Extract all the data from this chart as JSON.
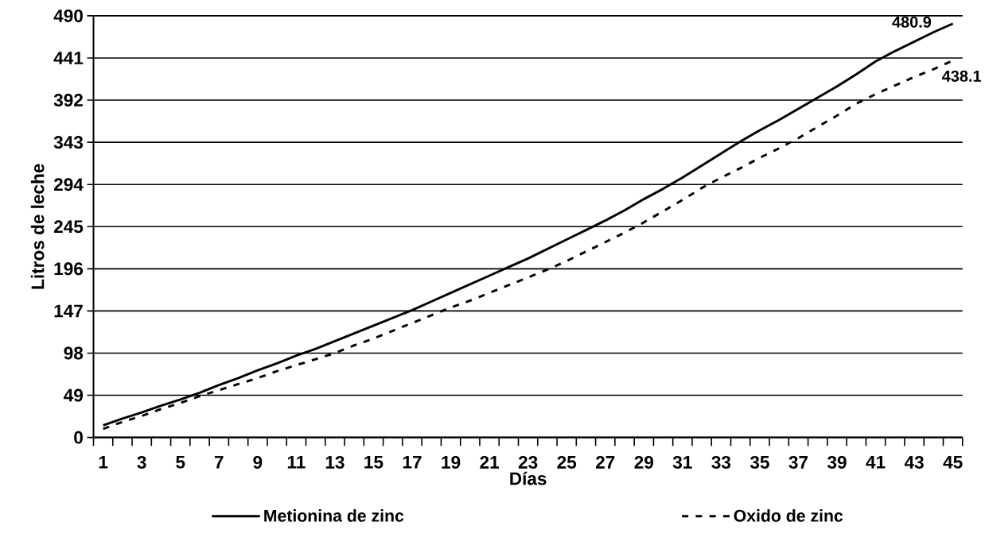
{
  "chart_data": {
    "type": "line",
    "xlabel": "Días",
    "ylabel": "Litros de leche",
    "categories": [
      "1",
      null,
      "3",
      null,
      "5",
      null,
      "7",
      null,
      "9",
      null,
      "11",
      null,
      "13",
      null,
      "15",
      null,
      "17",
      null,
      "19",
      null,
      "21",
      null,
      "23",
      null,
      "25",
      null,
      "27",
      null,
      "29",
      null,
      "31",
      null,
      "33",
      null,
      "35",
      null,
      "37",
      null,
      "39",
      null,
      "41",
      null,
      "43",
      null,
      "45"
    ],
    "series": [
      {
        "name": "Metionina de zinc",
        "color": "#000000",
        "line_style": "solid",
        "values": [
          14,
          22,
          29,
          37,
          44,
          52,
          61,
          69,
          78,
          86,
          95,
          103,
          112,
          121,
          130,
          139,
          148,
          158,
          168,
          178,
          188,
          198,
          208,
          219,
          230,
          241,
          252,
          264,
          277,
          289,
          302,
          316,
          330,
          344,
          357,
          369,
          382,
          395,
          408,
          422,
          437,
          449,
          460,
          471,
          480.9
        ],
        "value_labels": [
          null,
          null,
          null,
          null,
          null,
          null,
          null,
          null,
          null,
          null,
          null,
          null,
          null,
          null,
          null,
          null,
          null,
          null,
          null,
          null,
          null,
          null,
          null,
          null,
          null,
          null,
          null,
          null,
          null,
          null,
          null,
          null,
          null,
          null,
          null,
          null,
          null,
          null,
          null,
          null,
          null,
          null,
          null,
          null,
          "480.9"
        ]
      },
      {
        "name": "Oxido de zinc",
        "color": "#000000",
        "line_style": "dashed",
        "values": [
          10,
          18,
          25,
          33,
          40,
          48,
          55,
          62,
          69,
          77,
          84,
          91,
          98,
          107,
          115,
          124,
          133,
          142,
          151,
          159,
          168,
          177,
          186,
          195,
          205,
          216,
          227,
          238,
          250,
          263,
          276,
          290,
          302,
          313,
          325,
          336,
          348,
          361,
          374,
          388,
          399,
          409,
          419,
          428,
          438.1
        ],
        "value_labels": [
          null,
          null,
          null,
          null,
          null,
          null,
          null,
          null,
          null,
          null,
          null,
          null,
          null,
          null,
          null,
          null,
          null,
          null,
          null,
          null,
          null,
          null,
          null,
          null,
          null,
          null,
          null,
          null,
          null,
          null,
          null,
          null,
          null,
          null,
          null,
          null,
          null,
          null,
          null,
          null,
          null,
          null,
          null,
          null,
          "438.1"
        ]
      }
    ],
    "ylim": [
      0,
      490
    ],
    "yticks": [
      0,
      49,
      98,
      147,
      196,
      245,
      294,
      343,
      392,
      441,
      490
    ],
    "grid": "y",
    "legend": "bottom"
  }
}
